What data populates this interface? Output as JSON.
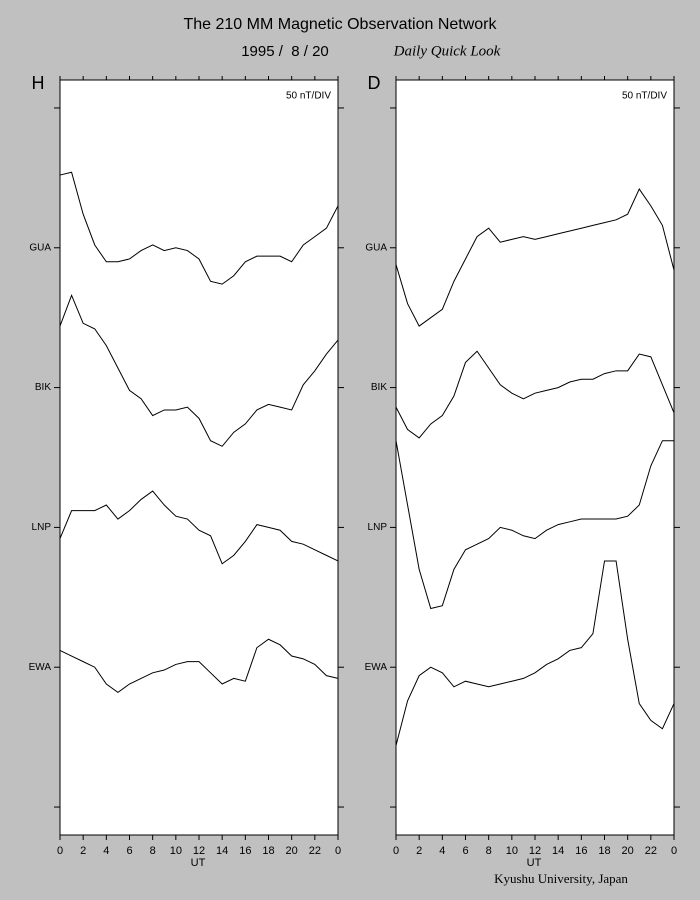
{
  "title": "The 210 MM Magnetic Observation Network",
  "date": "1995 /  8 / 20",
  "subtitle": "Daily Quick Look",
  "credit": "Kyushu University, Japan",
  "chart_data": [
    {
      "type": "line",
      "panel": "H",
      "annotation": "50 nT/DIV",
      "x_label": "UT",
      "x": [
        0,
        1,
        2,
        3,
        4,
        5,
        6,
        7,
        8,
        9,
        10,
        11,
        12,
        13,
        14,
        15,
        16,
        17,
        18,
        19,
        20,
        21,
        22,
        23,
        24
      ],
      "xlim": [
        0,
        24
      ],
      "xticks": [
        0,
        2,
        4,
        6,
        8,
        10,
        12,
        14,
        16,
        18,
        20,
        22,
        {
          "value": 24,
          "label": "0"
        }
      ],
      "ylim": [
        -10,
        260
      ],
      "yticks": [
        {
          "value": 0,
          "label": null
        },
        {
          "value": 50,
          "label": "EWA"
        },
        {
          "value": 100,
          "label": "LNP"
        },
        {
          "value": 150,
          "label": "BIK"
        },
        {
          "value": 200,
          "label": "GUA"
        },
        {
          "value": 250,
          "label": null
        }
      ],
      "series": [
        {
          "color": "#000000",
          "values": [
            226,
            227,
            212,
            201,
            195,
            195,
            196,
            199,
            201,
            199,
            200,
            199,
            196,
            188,
            187,
            190,
            195,
            197,
            197,
            197,
            195,
            201,
            204,
            207,
            215
          ]
        },
        {
          "color": "#000000",
          "values": [
            172,
            183,
            173,
            171,
            165,
            157,
            149,
            146,
            140,
            142,
            142,
            143,
            139,
            131,
            129,
            134,
            137,
            142,
            144,
            143,
            142,
            151,
            156,
            162,
            167
          ]
        },
        {
          "color": "#000000",
          "values": [
            96,
            106,
            106,
            106,
            108,
            103,
            106,
            110,
            113,
            108,
            104,
            103,
            99,
            97,
            87,
            90,
            95,
            101,
            100,
            99,
            95,
            94,
            92,
            90,
            88
          ]
        },
        {
          "color": "#000000",
          "values": [
            56,
            54,
            52,
            50,
            44,
            41,
            44,
            46,
            48,
            49,
            51,
            52,
            52,
            48,
            44,
            46,
            45,
            57,
            60,
            58,
            54,
            53,
            51,
            47,
            46
          ]
        }
      ]
    },
    {
      "type": "line",
      "panel": "D",
      "annotation": "50 nT/DIV",
      "x_label": "UT",
      "x": [
        0,
        1,
        2,
        3,
        4,
        5,
        6,
        7,
        8,
        9,
        10,
        11,
        12,
        13,
        14,
        15,
        16,
        17,
        18,
        19,
        20,
        21,
        22,
        23,
        24
      ],
      "xlim": [
        0,
        24
      ],
      "xticks": [
        0,
        2,
        4,
        6,
        8,
        10,
        12,
        14,
        16,
        18,
        20,
        22,
        {
          "value": 24,
          "label": "0"
        }
      ],
      "ylim": [
        -10,
        260
      ],
      "yticks": [
        {
          "value": 0,
          "label": null
        },
        {
          "value": 50,
          "label": "EWA"
        },
        {
          "value": 100,
          "label": "LNP"
        },
        {
          "value": 150,
          "label": "BIK"
        },
        {
          "value": 200,
          "label": "GUA"
        },
        {
          "value": 250,
          "label": null
        }
      ],
      "series": [
        {
          "color": "#000000",
          "values": [
            194,
            180,
            172,
            175,
            178,
            188,
            196,
            204,
            207,
            202,
            203,
            204,
            203,
            204,
            205,
            206,
            207,
            208,
            209,
            210,
            212,
            221,
            215,
            208,
            192
          ]
        },
        {
          "color": "#000000",
          "values": [
            143,
            135,
            132,
            137,
            140,
            147,
            159,
            163,
            157,
            151,
            148,
            146,
            148,
            149,
            150,
            152,
            153,
            153,
            155,
            156,
            156,
            162,
            161,
            151,
            141
          ]
        },
        {
          "color": "#000000",
          "values": [
            131,
            108,
            85,
            71,
            72,
            85,
            92,
            94,
            96,
            100,
            99,
            97,
            96,
            99,
            101,
            102,
            103,
            103,
            103,
            103,
            104,
            108,
            122,
            131,
            131
          ]
        },
        {
          "color": "#000000",
          "values": [
            22,
            38,
            47,
            50,
            48,
            43,
            45,
            44,
            43,
            44,
            45,
            46,
            48,
            51,
            53,
            56,
            57,
            62,
            88,
            88,
            60,
            37,
            31,
            28,
            37
          ]
        }
      ]
    }
  ]
}
